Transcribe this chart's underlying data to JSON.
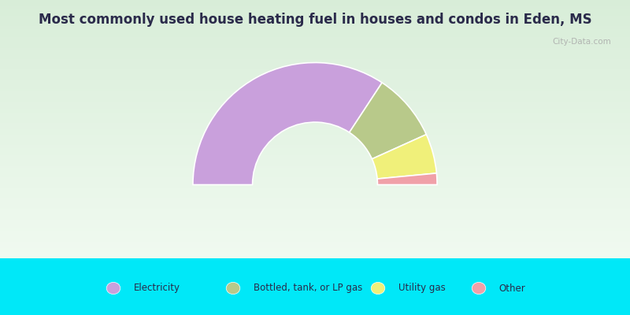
{
  "title": "Most commonly used house heating fuel in houses and condos in Eden, MS",
  "title_fontsize": 12,
  "segments": [
    {
      "label": "Electricity",
      "value": 68.5,
      "color": "#c9a0dc"
    },
    {
      "label": "Bottled, tank, or LP gas",
      "value": 18.0,
      "color": "#b8c98a"
    },
    {
      "label": "Utility gas",
      "value": 10.5,
      "color": "#f0f07a"
    },
    {
      "label": "Other",
      "value": 3.0,
      "color": "#f0a0a8"
    }
  ],
  "outer_r": 0.82,
  "inner_r": 0.42,
  "figsize": [
    8,
    4
  ],
  "dpi": 100,
  "bg_top_color": "#e8f5e4",
  "bg_bottom_color": "#c8f0c8",
  "legend_bg_color": "#00e8f8",
  "title_color": "#2a2a4a",
  "legend_text_color": "#2a2a4a",
  "watermark_text": "City-Data.com",
  "watermark_color": "#aaaaaa"
}
